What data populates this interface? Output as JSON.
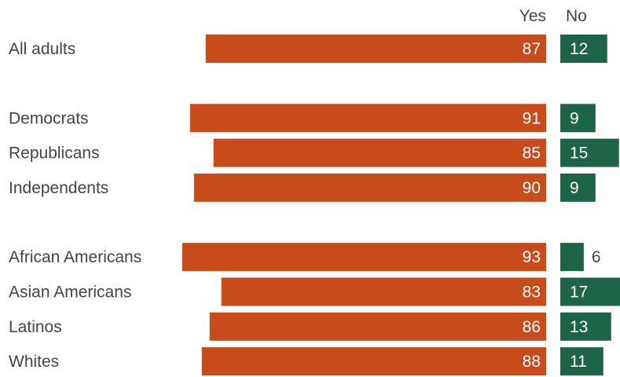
{
  "chart_data": {
    "type": "bar",
    "orientation": "horizontal-diverging",
    "column_headers": {
      "yes": "Yes",
      "no": "No"
    },
    "categories": [
      "All adults",
      "Democrats",
      "Republicans",
      "Independents",
      "African Americans",
      "Asian Americans",
      "Latinos",
      "Whites"
    ],
    "groups": [
      [
        "All adults"
      ],
      [
        "Democrats",
        "Republicans",
        "Independents"
      ],
      [
        "African Americans",
        "Asian Americans",
        "Latinos",
        "Whites"
      ]
    ],
    "series": [
      {
        "name": "Yes",
        "color": "#c84b1c",
        "values": [
          87,
          91,
          85,
          90,
          93,
          83,
          86,
          88
        ]
      },
      {
        "name": "No",
        "color": "#1e6448",
        "values": [
          12,
          9,
          15,
          9,
          6,
          17,
          13,
          11
        ]
      }
    ],
    "title": "",
    "legend": "none",
    "grid": false
  }
}
